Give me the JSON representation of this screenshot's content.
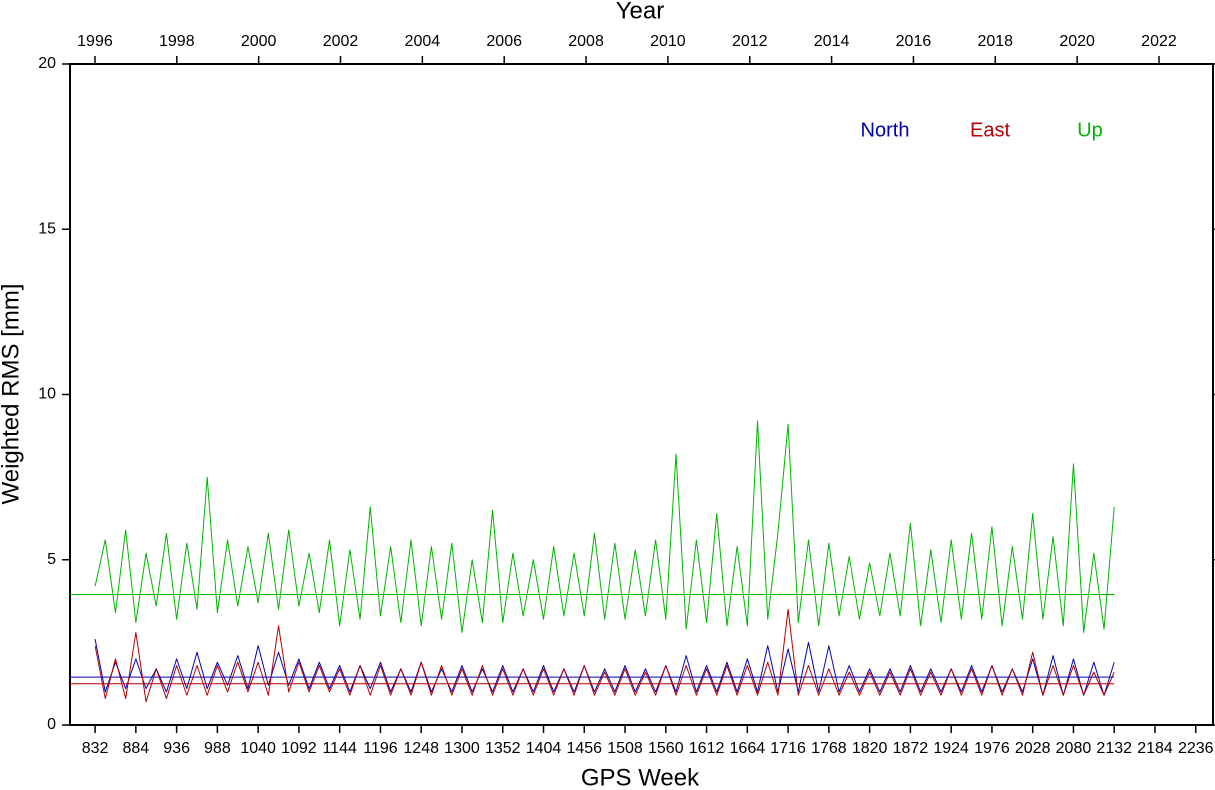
{
  "chart_data": {
    "type": "line",
    "title": "Year",
    "xlabel": "GPS Week",
    "ylabel": "Weighted RMS [mm]",
    "xlim": [
      800,
      2258
    ],
    "xticks": [
      832,
      884,
      936,
      988,
      1040,
      1092,
      1144,
      1196,
      1248,
      1300,
      1352,
      1404,
      1456,
      1508,
      1560,
      1612,
      1664,
      1716,
      1768,
      1820,
      1872,
      1924,
      1976,
      2028,
      2080,
      2132,
      2184,
      2236
    ],
    "x2lim": [
      1995.39,
      2023.32
    ],
    "x2ticks": [
      1996,
      1998,
      2000,
      2002,
      2004,
      2006,
      2008,
      2010,
      2012,
      2014,
      2016,
      2018,
      2020,
      2022
    ],
    "ylim": [
      0,
      20
    ],
    "yticks": [
      0,
      5,
      10,
      15,
      20
    ],
    "x": [
      832,
      845,
      858,
      871,
      884,
      897,
      910,
      923,
      936,
      949,
      962,
      975,
      988,
      1001,
      1014,
      1027,
      1040,
      1053,
      1066,
      1079,
      1092,
      1105,
      1118,
      1131,
      1144,
      1157,
      1170,
      1183,
      1196,
      1209,
      1222,
      1235,
      1248,
      1261,
      1274,
      1287,
      1300,
      1313,
      1326,
      1339,
      1352,
      1365,
      1378,
      1391,
      1404,
      1417,
      1430,
      1443,
      1456,
      1469,
      1482,
      1495,
      1508,
      1521,
      1534,
      1547,
      1560,
      1573,
      1586,
      1599,
      1612,
      1625,
      1638,
      1651,
      1664,
      1677,
      1690,
      1703,
      1716,
      1729,
      1742,
      1755,
      1768,
      1781,
      1794,
      1807,
      1820,
      1833,
      1846,
      1859,
      1872,
      1885,
      1898,
      1911,
      1924,
      1937,
      1950,
      1963,
      1976,
      1989,
      2002,
      2015,
      2028,
      2041,
      2054,
      2067,
      2080,
      2093,
      2106,
      2119,
      2132
    ],
    "series": [
      {
        "name": "North",
        "color": "#0000b4",
        "mean": 1.45,
        "values": [
          2.6,
          1.0,
          1.9,
          1.1,
          2.0,
          1.1,
          1.7,
          1.0,
          2.0,
          1.1,
          2.2,
          1.1,
          1.9,
          1.2,
          2.1,
          1.1,
          2.4,
          1.2,
          2.2,
          1.2,
          2.0,
          1.1,
          1.9,
          1.1,
          1.8,
          1.0,
          1.8,
          1.1,
          1.9,
          1.0,
          1.7,
          1.0,
          1.9,
          1.0,
          1.7,
          1.0,
          1.8,
          1.0,
          1.7,
          1.0,
          1.8,
          1.0,
          1.7,
          1.0,
          1.8,
          1.0,
          1.7,
          1.0,
          1.8,
          1.0,
          1.7,
          1.0,
          1.8,
          1.0,
          1.7,
          1.0,
          1.8,
          1.0,
          2.1,
          1.0,
          1.8,
          1.0,
          1.9,
          1.0,
          2.0,
          1.0,
          2.4,
          1.0,
          2.3,
          1.0,
          2.5,
          1.0,
          2.4,
          1.0,
          1.8,
          1.0,
          1.7,
          1.0,
          1.7,
          1.0,
          1.8,
          1.0,
          1.7,
          1.0,
          1.7,
          1.0,
          1.8,
          1.0,
          1.8,
          1.0,
          1.7,
          1.0,
          2.0,
          0.9,
          2.1,
          0.9,
          2.0,
          0.9,
          1.9,
          0.9,
          1.9
        ]
      },
      {
        "name": "East",
        "color": "#b40000",
        "mean": 1.25,
        "values": [
          2.4,
          0.8,
          2.0,
          0.8,
          2.8,
          0.7,
          1.7,
          0.8,
          1.8,
          0.9,
          1.8,
          0.9,
          1.8,
          1.0,
          1.9,
          1.0,
          1.9,
          0.9,
          3.0,
          1.0,
          1.9,
          1.0,
          1.8,
          1.0,
          1.7,
          0.9,
          1.8,
          0.9,
          1.8,
          0.9,
          1.7,
          0.9,
          1.9,
          0.9,
          1.8,
          0.9,
          1.7,
          0.9,
          1.8,
          0.9,
          1.7,
          0.9,
          1.7,
          0.9,
          1.7,
          0.9,
          1.7,
          0.9,
          1.8,
          0.9,
          1.6,
          0.9,
          1.7,
          0.9,
          1.6,
          0.9,
          1.8,
          0.9,
          1.8,
          0.9,
          1.7,
          0.9,
          1.8,
          0.9,
          1.8,
          0.9,
          1.9,
          0.9,
          3.5,
          0.9,
          1.8,
          0.9,
          1.7,
          0.9,
          1.6,
          0.9,
          1.6,
          0.9,
          1.6,
          0.9,
          1.7,
          0.9,
          1.6,
          0.9,
          1.7,
          0.9,
          1.7,
          0.9,
          1.8,
          0.9,
          1.7,
          0.9,
          2.2,
          0.9,
          1.8,
          0.9,
          1.8,
          0.9,
          1.6,
          0.9,
          1.6
        ]
      },
      {
        "name": "Up",
        "color": "#00b400",
        "mean": 3.95,
        "values": [
          4.2,
          5.6,
          3.4,
          5.9,
          3.1,
          5.2,
          3.6,
          5.8,
          3.2,
          5.5,
          3.5,
          7.5,
          3.4,
          5.6,
          3.6,
          5.4,
          3.7,
          5.8,
          3.5,
          5.9,
          3.6,
          5.2,
          3.4,
          5.6,
          3.0,
          5.3,
          3.2,
          6.6,
          3.3,
          5.4,
          3.1,
          5.6,
          3.0,
          5.4,
          3.2,
          5.5,
          2.8,
          5.0,
          3.1,
          6.5,
          3.1,
          5.2,
          3.3,
          5.0,
          3.2,
          5.4,
          3.3,
          5.2,
          3.3,
          5.8,
          3.2,
          5.5,
          3.2,
          5.3,
          3.3,
          5.6,
          3.2,
          8.2,
          2.9,
          5.6,
          3.1,
          6.4,
          3.0,
          5.4,
          3.0,
          9.2,
          3.2,
          5.8,
          9.1,
          3.1,
          5.6,
          3.0,
          5.5,
          3.3,
          5.1,
          3.2,
          4.9,
          3.3,
          5.2,
          3.3,
          6.1,
          3.0,
          5.3,
          3.1,
          5.6,
          3.2,
          5.8,
          3.2,
          6.0,
          3.0,
          5.4,
          3.2,
          6.4,
          3.2,
          5.7,
          3.0,
          7.9,
          2.8,
          5.2,
          2.9,
          6.6
        ]
      }
    ]
  }
}
